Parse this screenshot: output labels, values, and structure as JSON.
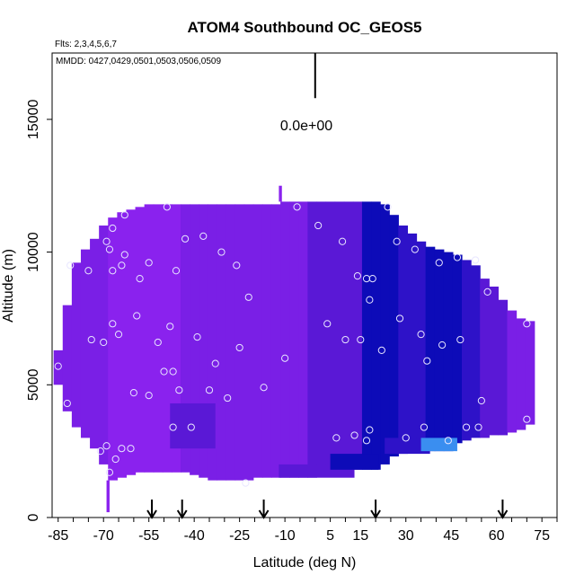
{
  "chart_data": {
    "type": "heatmap",
    "title": "ATOM4 Southbound OC_GEOS5",
    "subtitle_flights": "Flts: 2,3,4,5,6,7",
    "subtitle_dates": "MMDD: 0427,0429,0501,0503,0506,0509",
    "xlabel": "Latitude (deg N)",
    "ylabel": "Altitude (m)",
    "xlim": [
      -87,
      80
    ],
    "ylim": [
      0,
      17500
    ],
    "xticks_minor_step": 5,
    "xtick_labels": [
      "-85",
      "-70",
      "-55",
      "-40",
      "-25",
      "-10",
      "5",
      "15",
      "30",
      "45",
      "60",
      "75"
    ],
    "xtick_label_values": [
      -85,
      -70,
      -55,
      -40,
      -25,
      -10,
      5,
      15,
      30,
      45,
      60,
      75
    ],
    "yticks": [
      0,
      5000,
      10000,
      15000
    ],
    "ytick_labels": [
      "0",
      "5000",
      "10000",
      "15000"
    ],
    "scale_bar_label": "0.0e+00",
    "grid": false,
    "colors": {
      "violet": "#8a22ee",
      "purple": "#7a1fe6",
      "indigo": "#5a18d6",
      "blue": "#2e12c8",
      "deep_blue": "#0d0bb8",
      "light_blue": "#3a8ef0"
    },
    "field_columns": [
      {
        "lat": -85,
        "ytop": 6300,
        "ybot": 5000,
        "c": "purple"
      },
      {
        "lat": -82,
        "ytop": 8000,
        "ybot": 4000,
        "c": "purple"
      },
      {
        "lat": -79,
        "ytop": 9600,
        "ybot": 3400,
        "c": "purple"
      },
      {
        "lat": -76,
        "ytop": 10100,
        "ybot": 3000,
        "c": "purple"
      },
      {
        "lat": -73,
        "ytop": 10500,
        "ybot": 2600,
        "c": "purple"
      },
      {
        "lat": -70,
        "ytop": 11000,
        "ybot": 2000,
        "c": "purple"
      },
      {
        "lat": -67,
        "ytop": 11300,
        "ybot": 1400,
        "c": "violet"
      },
      {
        "lat": -64,
        "ytop": 11500,
        "ybot": 1500,
        "c": "violet"
      },
      {
        "lat": -61,
        "ytop": 11600,
        "ybot": 1600,
        "c": "violet"
      },
      {
        "lat": -58,
        "ytop": 11700,
        "ybot": 1700,
        "c": "violet"
      },
      {
        "lat": -55,
        "ytop": 11800,
        "ybot": 1700,
        "c": "violet"
      },
      {
        "lat": -52,
        "ytop": 11800,
        "ybot": 1700,
        "c": "violet"
      },
      {
        "lat": -49,
        "ytop": 11800,
        "ybot": 1700,
        "c": "violet"
      },
      {
        "lat": -46,
        "ytop": 11800,
        "ybot": 1700,
        "c": "violet"
      },
      {
        "lat": -43,
        "ytop": 11800,
        "ybot": 1700,
        "c": "purple"
      },
      {
        "lat": -40,
        "ytop": 11800,
        "ybot": 1600,
        "c": "purple"
      },
      {
        "lat": -37,
        "ytop": 11800,
        "ybot": 1500,
        "c": "purple"
      },
      {
        "lat": -34,
        "ytop": 11800,
        "ybot": 1400,
        "c": "purple"
      },
      {
        "lat": -31,
        "ytop": 11800,
        "ybot": 1400,
        "c": "purple"
      },
      {
        "lat": -28,
        "ytop": 11800,
        "ybot": 1400,
        "c": "purple"
      },
      {
        "lat": -25,
        "ytop": 11800,
        "ybot": 1400,
        "c": "purple"
      },
      {
        "lat": -22,
        "ytop": 11800,
        "ybot": 1400,
        "c": "purple"
      },
      {
        "lat": -19,
        "ytop": 11800,
        "ybot": 1500,
        "c": "purple"
      },
      {
        "lat": -16,
        "ytop": 11800,
        "ybot": 1500,
        "c": "purple"
      },
      {
        "lat": -13,
        "ytop": 11800,
        "ybot": 1500,
        "c": "purple"
      },
      {
        "lat": -10,
        "ytop": 11900,
        "ybot": 1500,
        "c": "purple"
      },
      {
        "lat": -7,
        "ytop": 11900,
        "ybot": 1500,
        "c": "purple"
      },
      {
        "lat": -4,
        "ytop": 11900,
        "ybot": 1500,
        "c": "purple"
      },
      {
        "lat": -1,
        "ytop": 11900,
        "ybot": 1500,
        "c": "indigo"
      },
      {
        "lat": 2,
        "ytop": 11900,
        "ybot": 1800,
        "c": "indigo"
      },
      {
        "lat": 5,
        "ytop": 11900,
        "ybot": 1800,
        "c": "indigo"
      },
      {
        "lat": 8,
        "ytop": 11900,
        "ybot": 1800,
        "c": "indigo"
      },
      {
        "lat": 11,
        "ytop": 11900,
        "ybot": 1800,
        "c": "indigo"
      },
      {
        "lat": 14,
        "ytop": 11900,
        "ybot": 1800,
        "c": "indigo"
      },
      {
        "lat": 17,
        "ytop": 11900,
        "ybot": 1800,
        "c": "deep_blue"
      },
      {
        "lat": 20,
        "ytop": 11900,
        "ybot": 1800,
        "c": "deep_blue"
      },
      {
        "lat": 23,
        "ytop": 11800,
        "ybot": 2000,
        "c": "deep_blue"
      },
      {
        "lat": 26,
        "ytop": 11400,
        "ybot": 2300,
        "c": "deep_blue"
      },
      {
        "lat": 29,
        "ytop": 11000,
        "ybot": 2400,
        "c": "blue"
      },
      {
        "lat": 32,
        "ytop": 10700,
        "ybot": 2500,
        "c": "blue"
      },
      {
        "lat": 35,
        "ytop": 10400,
        "ybot": 2500,
        "c": "blue"
      },
      {
        "lat": 38,
        "ytop": 10200,
        "ybot": 2500,
        "c": "deep_blue"
      },
      {
        "lat": 41,
        "ytop": 10100,
        "ybot": 2500,
        "c": "deep_blue"
      },
      {
        "lat": 44,
        "ytop": 10000,
        "ybot": 2500,
        "c": "deep_blue"
      },
      {
        "lat": 47,
        "ytop": 9900,
        "ybot": 2800,
        "c": "deep_blue"
      },
      {
        "lat": 50,
        "ytop": 9700,
        "ybot": 2900,
        "c": "blue"
      },
      {
        "lat": 53,
        "ytop": 9500,
        "ybot": 3000,
        "c": "blue"
      },
      {
        "lat": 56,
        "ytop": 9000,
        "ybot": 3000,
        "c": "indigo"
      },
      {
        "lat": 59,
        "ytop": 8700,
        "ybot": 3100,
        "c": "indigo"
      },
      {
        "lat": 62,
        "ytop": 8200,
        "ybot": 3100,
        "c": "indigo"
      },
      {
        "lat": 65,
        "ytop": 7800,
        "ybot": 3200,
        "c": "purple"
      },
      {
        "lat": 68,
        "ytop": 7500,
        "ybot": 3300,
        "c": "purple"
      },
      {
        "lat": 71,
        "ytop": 7400,
        "ybot": 3500,
        "c": "purple"
      }
    ],
    "field_patches": [
      {
        "lat0": -48,
        "lat1": -33,
        "y0": 2600,
        "y1": 4300,
        "c": "indigo"
      },
      {
        "lat0": -12,
        "lat1": 13,
        "y0": 1500,
        "y1": 2000,
        "c": "indigo"
      },
      {
        "lat0": 5,
        "lat1": 21,
        "y0": 1800,
        "y1": 2400,
        "c": "deep_blue"
      },
      {
        "lat0": 23,
        "lat1": 38,
        "y0": 2400,
        "y1": 3000,
        "c": "blue"
      },
      {
        "lat0": 35,
        "lat1": 47,
        "y0": 2500,
        "y1": 3000,
        "c": "light_blue"
      },
      {
        "lat0": -12,
        "lat1": -11,
        "y0": 11900,
        "y1": 12500,
        "c": "violet"
      },
      {
        "lat0": -69,
        "lat1": -68,
        "y0": 200,
        "y1": 1400,
        "c": "violet"
      }
    ],
    "sample_points": [
      {
        "x": -85,
        "y": 5700
      },
      {
        "x": -82,
        "y": 4300
      },
      {
        "x": -81,
        "y": 9500
      },
      {
        "x": -75,
        "y": 9300
      },
      {
        "x": -74,
        "y": 6700
      },
      {
        "x": -71,
        "y": 2500
      },
      {
        "x": -70,
        "y": 6600
      },
      {
        "x": -69,
        "y": 10400
      },
      {
        "x": -69,
        "y": 2700
      },
      {
        "x": -68,
        "y": 10100
      },
      {
        "x": -68,
        "y": 1700
      },
      {
        "x": -67,
        "y": 9300
      },
      {
        "x": -67,
        "y": 7300
      },
      {
        "x": -67,
        "y": 10900
      },
      {
        "x": -66,
        "y": 2200
      },
      {
        "x": -65,
        "y": 6900
      },
      {
        "x": -64,
        "y": 2600
      },
      {
        "x": -64,
        "y": 9500
      },
      {
        "x": -63,
        "y": 9900
      },
      {
        "x": -63,
        "y": 11400
      },
      {
        "x": -61,
        "y": 2600
      },
      {
        "x": -60,
        "y": 4700
      },
      {
        "x": -59,
        "y": 7600
      },
      {
        "x": -58,
        "y": 9000
      },
      {
        "x": -55,
        "y": 9600
      },
      {
        "x": -55,
        "y": 4600
      },
      {
        "x": -52,
        "y": 6600
      },
      {
        "x": -50,
        "y": 5500
      },
      {
        "x": -49,
        "y": 11700
      },
      {
        "x": -48,
        "y": 7200
      },
      {
        "x": -47,
        "y": 3400
      },
      {
        "x": -47,
        "y": 5500
      },
      {
        "x": -46,
        "y": 9300
      },
      {
        "x": -45,
        "y": 4800
      },
      {
        "x": -43,
        "y": 10500
      },
      {
        "x": -41,
        "y": 3400
      },
      {
        "x": -39,
        "y": 6800
      },
      {
        "x": -37,
        "y": 10600
      },
      {
        "x": -35,
        "y": 4800
      },
      {
        "x": -33,
        "y": 5800
      },
      {
        "x": -31,
        "y": 10000
      },
      {
        "x": -29,
        "y": 4500
      },
      {
        "x": -26,
        "y": 9500
      },
      {
        "x": -25,
        "y": 6400
      },
      {
        "x": -23,
        "y": 1300
      },
      {
        "x": -22,
        "y": 8300
      },
      {
        "x": -17,
        "y": 4900
      },
      {
        "x": -10,
        "y": 6000
      },
      {
        "x": -6,
        "y": 11700
      },
      {
        "x": 1,
        "y": 11000
      },
      {
        "x": 4,
        "y": 7300
      },
      {
        "x": 7,
        "y": 3000
      },
      {
        "x": 9,
        "y": 10400
      },
      {
        "x": 10,
        "y": 6700
      },
      {
        "x": 13,
        "y": 3100
      },
      {
        "x": 14,
        "y": 9100
      },
      {
        "x": 15,
        "y": 6700
      },
      {
        "x": 17,
        "y": 9000
      },
      {
        "x": 17,
        "y": 2900
      },
      {
        "x": 18,
        "y": 8200
      },
      {
        "x": 18,
        "y": 3300
      },
      {
        "x": 19,
        "y": 9000
      },
      {
        "x": 22,
        "y": 6300
      },
      {
        "x": 24,
        "y": 11700
      },
      {
        "x": 27,
        "y": 10400
      },
      {
        "x": 28,
        "y": 7500
      },
      {
        "x": 30,
        "y": 3000
      },
      {
        "x": 33,
        "y": 10100
      },
      {
        "x": 35,
        "y": 6900
      },
      {
        "x": 36,
        "y": 3400
      },
      {
        "x": 37,
        "y": 5900
      },
      {
        "x": 41,
        "y": 9600
      },
      {
        "x": 42,
        "y": 6500
      },
      {
        "x": 44,
        "y": 2900
      },
      {
        "x": 47,
        "y": 9800
      },
      {
        "x": 48,
        "y": 6700
      },
      {
        "x": 50,
        "y": 3400
      },
      {
        "x": 53,
        "y": 9700
      },
      {
        "x": 54,
        "y": 3400
      },
      {
        "x": 55,
        "y": 4400
      },
      {
        "x": 57,
        "y": 8500
      },
      {
        "x": 70,
        "y": 7300
      },
      {
        "x": 70,
        "y": 3700
      }
    ],
    "arrow_latitudes": [
      -54,
      -44,
      -17,
      20,
      62
    ],
    "scale_bar": {
      "lat": 0,
      "y_top": 17500,
      "y_bottom": 15800
    }
  }
}
